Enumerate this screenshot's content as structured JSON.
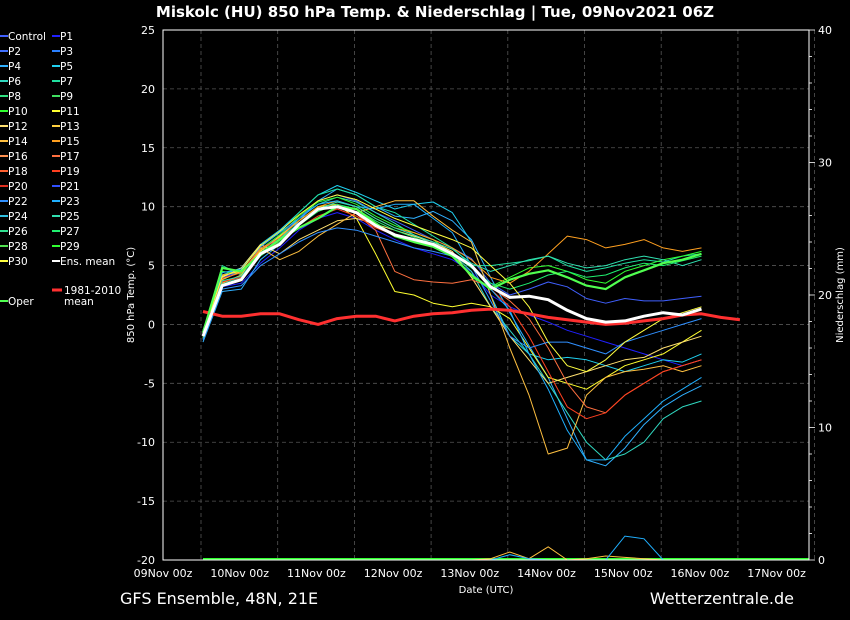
{
  "chart_data": {
    "type": "line",
    "title": "Miskolc  (HU)  850 hPa Temp. & Niederschlag | Tue, 09Nov2021 06Z",
    "xlabel": "Date (UTC)",
    "ylabel": "850 hPa Temp. (°C)",
    "ylabel_right": "Niederschlag (mm)",
    "x_tick_labels": [
      "09Nov 00z",
      "10Nov 00z",
      "11Nov 00z",
      "12Nov 00z",
      "13Nov 00z",
      "14Nov 00z",
      "15Nov 00z",
      "16Nov 00z",
      "17Nov 00z"
    ],
    "ylim": [
      -20,
      25
    ],
    "yticks": [
      25,
      20,
      15,
      10,
      5,
      0,
      -5,
      -10,
      -15,
      -20
    ],
    "ylim_right": [
      0,
      40
    ],
    "yticks_right": [
      40,
      30,
      20,
      10,
      0
    ],
    "grid": true,
    "time_step_hours": 6,
    "x_start": "09Nov 06z",
    "legend": {
      "placement": "left",
      "entries": [
        {
          "name": "Control",
          "color": "#4060ff"
        },
        {
          "name": "P1",
          "color": "#2020ff"
        },
        {
          "name": "P2",
          "color": "#4070ff"
        },
        {
          "name": "P3",
          "color": "#2a80ff"
        },
        {
          "name": "P4",
          "color": "#30b0ff"
        },
        {
          "name": "P5",
          "color": "#20d0f0"
        },
        {
          "name": "P6",
          "color": "#30d8c0"
        },
        {
          "name": "P7",
          "color": "#20e0a0"
        },
        {
          "name": "P8",
          "color": "#30e080"
        },
        {
          "name": "P9",
          "color": "#40e060"
        },
        {
          "name": "P10",
          "color": "#30ff30"
        },
        {
          "name": "P11",
          "color": "#ffff30"
        },
        {
          "name": "P12",
          "color": "#ffe070"
        },
        {
          "name": "P13",
          "color": "#ffd040"
        },
        {
          "name": "P14",
          "color": "#ffc040"
        },
        {
          "name": "P15",
          "color": "#ffa020"
        },
        {
          "name": "P16",
          "color": "#ff9050"
        },
        {
          "name": "P17",
          "color": "#ff7040"
        },
        {
          "name": "P18",
          "color": "#ff6030"
        },
        {
          "name": "P19",
          "color": "#ff4020"
        },
        {
          "name": "P20",
          "color": "#e03020"
        },
        {
          "name": "P21",
          "color": "#3050ff"
        },
        {
          "name": "P22",
          "color": "#3090ff"
        },
        {
          "name": "P23",
          "color": "#20b0ff"
        },
        {
          "name": "P24",
          "color": "#30c0e0"
        },
        {
          "name": "P25",
          "color": "#30e0b0"
        },
        {
          "name": "P26",
          "color": "#30e090"
        },
        {
          "name": "P27",
          "color": "#20f070"
        },
        {
          "name": "P28",
          "color": "#50e050"
        },
        {
          "name": "P29",
          "color": "#30ff30"
        },
        {
          "name": "P30",
          "color": "#ffff40"
        },
        {
          "name": "Ens. mean",
          "color": "#ffffff"
        },
        {
          "name": "Oper",
          "color": "#50ff50"
        },
        {
          "name": "1981-2010 mean",
          "color": "#ff3030"
        }
      ]
    },
    "series": [
      {
        "name": "Ens. mean",
        "color": "#ffffff",
        "values": [
          -1.0,
          3.3,
          3.8,
          6.0,
          6.8,
          8.5,
          9.8,
          10.0,
          9.5,
          8.4,
          7.6,
          7.2,
          6.8,
          6.0,
          5.0,
          3.2,
          2.3,
          2.4,
          2.1,
          1.2,
          0.5,
          0.2,
          0.3,
          0.7,
          1.0,
          0.8,
          1.3
        ]
      },
      {
        "name": "Oper",
        "color": "#50ff50",
        "values": [
          -0.7,
          4.8,
          4.5,
          6.0,
          7.2,
          8.2,
          9.0,
          10.0,
          9.8,
          8.6,
          7.5,
          7.0,
          6.6,
          5.8,
          4.2,
          3.0,
          3.8,
          4.3,
          4.6,
          4.0,
          3.3,
          3.0,
          4.0,
          4.6,
          5.2,
          5.5,
          6.0
        ]
      },
      {
        "name": "1981-2010 mean",
        "color": "#ff3030",
        "values": [
          1.1,
          0.7,
          0.7,
          0.9,
          0.9,
          0.4,
          0.0,
          0.5,
          0.7,
          0.7,
          0.3,
          0.7,
          0.9,
          1.0,
          1.2,
          1.3,
          1.2,
          0.9,
          0.6,
          0.4,
          0.2,
          0.0,
          0.1,
          0.3,
          0.5,
          0.8,
          0.9,
          0.6,
          0.4
        ]
      },
      {
        "name": "Control",
        "color": "#4060ff",
        "values": [
          -1.2,
          4.0,
          4.5,
          6.3,
          7.5,
          9.0,
          10.5,
          11.0,
          10.5,
          9.5,
          8.8,
          8.0,
          7.2,
          6.5,
          5.6,
          3.5,
          2.5,
          3.0,
          3.6,
          3.2,
          2.2,
          1.8,
          2.2,
          2.0,
          2.0,
          2.2,
          2.4
        ]
      },
      {
        "name": "P1",
        "color": "#2020ff",
        "values": [
          -0.8,
          3.2,
          3.5,
          5.2,
          6.5,
          8.0,
          9.0,
          9.5,
          9.0,
          8.0,
          7.2,
          6.5,
          6.0,
          5.5,
          4.5,
          2.5,
          1.5,
          0.8,
          0.2,
          -0.5,
          -1.0,
          -1.5,
          -2.0,
          -2.5,
          -3.0,
          -3.5,
          -3.0
        ]
      },
      {
        "name": "P4",
        "color": "#30b0ff",
        "values": [
          -1.5,
          2.8,
          3.0,
          5.5,
          6.8,
          8.8,
          10.5,
          11.5,
          11.0,
          10.0,
          9.2,
          9.0,
          9.6,
          8.8,
          7.2,
          4.0,
          1.0,
          -1.8,
          -4.5,
          -8.0,
          -11.5,
          -12.0,
          -10.5,
          -8.5,
          -7.0,
          -6.0,
          -5.2
        ]
      },
      {
        "name": "P5",
        "color": "#20d0f0",
        "values": [
          -0.5,
          4.2,
          4.8,
          6.8,
          8.0,
          9.5,
          11.0,
          11.8,
          11.2,
          10.5,
          9.8,
          10.2,
          10.4,
          9.5,
          7.0,
          2.5,
          -1.0,
          -2.5,
          -3.0,
          -2.8,
          -3.0,
          -3.5,
          -4.0,
          -3.5,
          -3.0,
          -3.2,
          -2.5
        ]
      },
      {
        "name": "P6",
        "color": "#30d8c0",
        "values": [
          -1.0,
          3.5,
          4.0,
          6.0,
          7.2,
          9.0,
          10.2,
          10.8,
          10.4,
          9.5,
          8.6,
          7.6,
          6.8,
          6.0,
          4.5,
          1.5,
          -0.5,
          -2.5,
          -5.0,
          -7.5,
          -10.0,
          -11.5,
          -11.0,
          -10.0,
          -8.0,
          -7.0,
          -6.5
        ]
      },
      {
        "name": "P7",
        "color": "#20e0a0",
        "values": [
          -1.2,
          5.0,
          4.2,
          6.6,
          7.8,
          9.5,
          11.0,
          11.5,
          11.0,
          10.0,
          9.5,
          8.5,
          7.5,
          6.5,
          5.0,
          5.0,
          5.2,
          5.4,
          5.8,
          5.0,
          4.5,
          4.8,
          5.2,
          5.5,
          5.3,
          5.8,
          6.0
        ]
      },
      {
        "name": "P10",
        "color": "#30ff30",
        "values": [
          -0.9,
          4.5,
          4.3,
          6.4,
          7.6,
          9.2,
          10.4,
          10.8,
          10.2,
          9.2,
          8.4,
          7.8,
          7.2,
          6.0,
          4.0,
          3.2,
          4.0,
          4.8,
          5.0,
          4.5,
          3.8,
          3.5,
          4.5,
          5.0,
          5.5,
          5.8,
          6.2
        ]
      },
      {
        "name": "P11",
        "color": "#ffff30",
        "values": [
          -1.0,
          3.8,
          4.5,
          6.2,
          7.5,
          8.8,
          10.0,
          10.2,
          9.0,
          6.0,
          2.8,
          2.5,
          1.8,
          1.5,
          1.8,
          1.5,
          0.5,
          -2.0,
          -4.5,
          -5.0,
          -5.5,
          -4.5,
          -3.5,
          -3.0,
          -2.5,
          -1.5,
          -0.5
        ]
      },
      {
        "name": "P12",
        "color": "#ffe070",
        "values": [
          -0.8,
          4.0,
          4.8,
          6.8,
          6.0,
          7.2,
          8.0,
          8.8,
          9.0,
          8.5,
          8.0,
          7.5,
          7.0,
          6.2,
          4.0,
          1.5,
          -1.0,
          -3.0,
          -5.0,
          -4.5,
          -4.0,
          -3.5,
          -3.0,
          -2.8,
          -2.0,
          -1.5,
          -1.0
        ]
      },
      {
        "name": "P14",
        "color": "#ffc040",
        "values": [
          -1.2,
          3.5,
          4.2,
          6.5,
          5.5,
          6.2,
          7.5,
          8.5,
          9.5,
          10.0,
          10.5,
          10.5,
          9.2,
          8.0,
          7.0,
          2.5,
          -2.0,
          -6.0,
          -11.0,
          -10.5,
          -6.0,
          -4.5,
          -4.0,
          -3.8,
          -3.5,
          -4.0,
          -3.5
        ]
      },
      {
        "name": "P15",
        "color": "#ffa020",
        "values": [
          -1.0,
          4.2,
          4.5,
          6.3,
          7.4,
          8.8,
          10.0,
          10.5,
          10.0,
          9.0,
          8.2,
          7.8,
          7.2,
          6.5,
          5.5,
          4.0,
          3.5,
          4.5,
          6.0,
          7.5,
          7.2,
          6.5,
          6.8,
          7.2,
          6.5,
          6.2,
          6.5
        ]
      },
      {
        "name": "P17",
        "color": "#ff7040",
        "values": [
          -1.1,
          3.9,
          4.4,
          6.5,
          7.2,
          8.5,
          9.6,
          10.2,
          9.4,
          8.0,
          4.5,
          3.8,
          3.6,
          3.5,
          3.8,
          3.2,
          2.0,
          0.5,
          -2.0,
          -5.0,
          -7.0,
          -7.5,
          -6.0,
          -5.0,
          -4.0,
          -3.5,
          -3.0
        ]
      },
      {
        "name": "P19",
        "color": "#ff4020",
        "values": [
          -0.9,
          3.6,
          4.0,
          6.0,
          7.0,
          8.2,
          9.2,
          9.8,
          9.2,
          8.2,
          7.6,
          7.0,
          6.6,
          6.0,
          5.0,
          3.0,
          1.5,
          -1.0,
          -4.0,
          -7.0,
          -8.0,
          -7.5,
          -6.0,
          -5.0,
          -4.0,
          -3.5,
          -3.0
        ]
      },
      {
        "name": "P22",
        "color": "#3090ff",
        "values": [
          -1.3,
          3.0,
          3.3,
          5.0,
          6.0,
          7.0,
          7.8,
          8.2,
          8.0,
          7.5,
          7.0,
          6.5,
          6.2,
          5.8,
          5.0,
          2.0,
          -1.0,
          -2.0,
          -1.5,
          -1.5,
          -2.0,
          -2.5,
          -1.5,
          -1.0,
          -0.5,
          0.0,
          0.5
        ]
      },
      {
        "name": "P23",
        "color": "#20b0ff",
        "values": [
          -0.7,
          4.4,
          4.7,
          6.6,
          7.8,
          9.0,
          10.2,
          10.5,
          10.0,
          9.8,
          10.2,
          10.2,
          9.0,
          7.8,
          5.0,
          3.0,
          1.2,
          -2.5,
          -5.5,
          -9.0,
          -11.5,
          -11.5,
          -9.5,
          -8.0,
          -6.5,
          -5.5,
          -4.5
        ]
      },
      {
        "name": "P25",
        "color": "#30e0b0",
        "values": [
          -1.0,
          3.7,
          4.1,
          6.1,
          7.3,
          8.6,
          9.8,
          10.4,
          10.0,
          9.0,
          8.2,
          7.6,
          7.0,
          6.4,
          5.2,
          4.5,
          5.0,
          5.5,
          5.8,
          5.2,
          4.8,
          5.0,
          5.5,
          5.8,
          5.5,
          5.0,
          5.5
        ]
      },
      {
        "name": "P27",
        "color": "#20f070",
        "values": [
          -1.1,
          3.4,
          3.9,
          5.8,
          7.0,
          8.4,
          9.6,
          10.2,
          9.8,
          8.8,
          8.0,
          7.4,
          6.8,
          6.0,
          4.8,
          3.5,
          3.0,
          3.5,
          4.2,
          4.5,
          4.0,
          4.2,
          4.8,
          5.2,
          5.0,
          5.4,
          5.8
        ]
      },
      {
        "name": "P30",
        "color": "#ffff40",
        "values": [
          -0.8,
          4.1,
          4.6,
          6.7,
          7.9,
          9.3,
          10.5,
          11.0,
          10.6,
          9.8,
          9.0,
          8.4,
          7.8,
          7.2,
          6.5,
          5.0,
          3.5,
          1.5,
          -1.5,
          -3.5,
          -4.0,
          -3.0,
          -1.5,
          -0.5,
          0.5,
          1.0,
          1.5
        ]
      }
    ],
    "precip_series": [
      {
        "name": "P14",
        "color": "#ffc040",
        "values": [
          0,
          0,
          0,
          0,
          0,
          0,
          0,
          0,
          0,
          0,
          0,
          0,
          0,
          0,
          0,
          0.1,
          0.6,
          0.1,
          1.0,
          0,
          0.1,
          0.3,
          0.2,
          0.1,
          0,
          0,
          0
        ]
      },
      {
        "name": "P23",
        "color": "#20b0ff",
        "values": [
          0,
          0,
          0,
          0,
          0,
          0,
          0,
          0,
          0,
          0,
          0,
          0,
          0,
          0,
          0,
          0,
          0.4,
          0.1,
          0,
          0,
          0,
          0,
          1.8,
          1.6,
          0,
          0,
          0
        ]
      }
    ]
  },
  "footer": {
    "left": "GFS Ensemble, 48N, 21E",
    "right": "Wetterzentrale.de"
  }
}
